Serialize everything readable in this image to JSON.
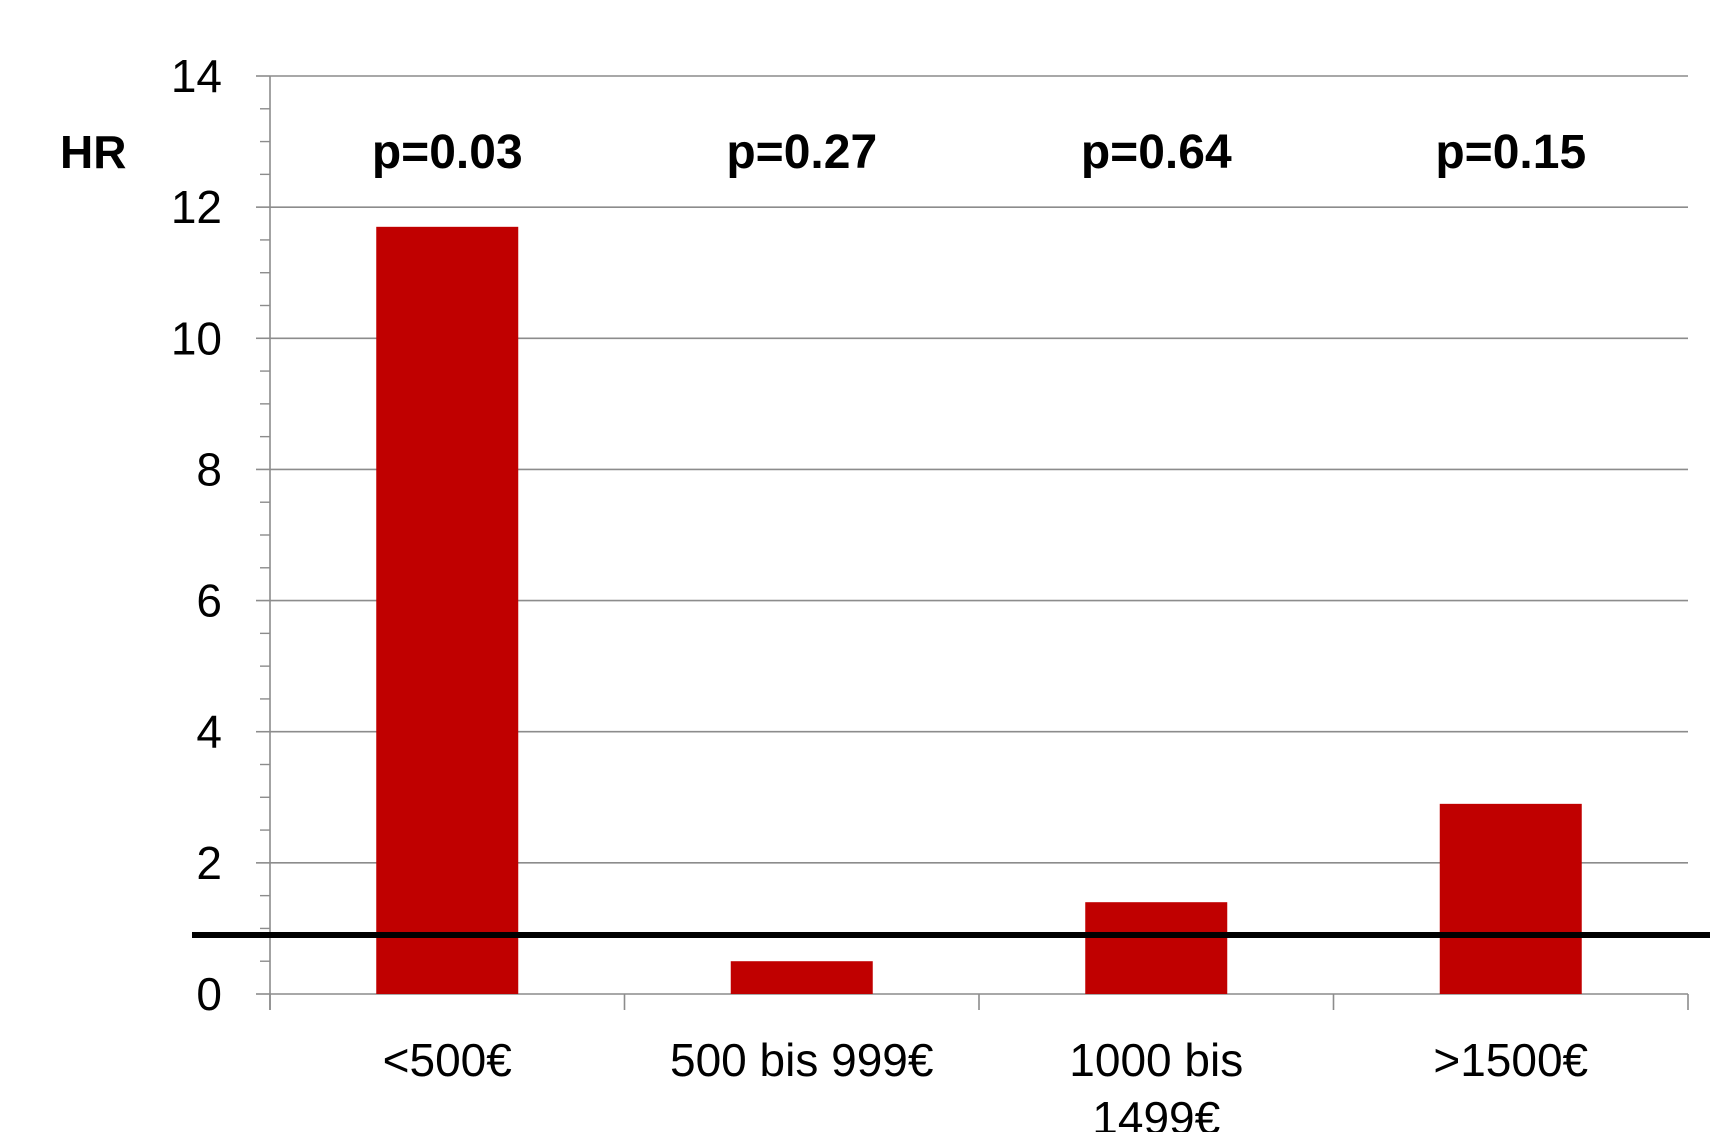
{
  "chart_data": {
    "type": "bar",
    "categories": [
      "<500€",
      "500 bis 999€",
      "1000 bis 1499€",
      ">1500€"
    ],
    "values": [
      11.7,
      0.5,
      1.4,
      2.9
    ],
    "annotations": [
      "p=0.03",
      "p=0.27",
      "p=0.64",
      "p=0.15"
    ],
    "ylabel": "HR",
    "xlabel": "",
    "title": "",
    "ylim": [
      0,
      14
    ],
    "yticks": [
      0,
      2,
      4,
      6,
      8,
      10,
      12,
      14
    ],
    "reference_line": 0.9,
    "grid": true,
    "bar_color": "#C00000",
    "reference_line_color": "#000000",
    "gridline_color": "#8C8C8C"
  }
}
